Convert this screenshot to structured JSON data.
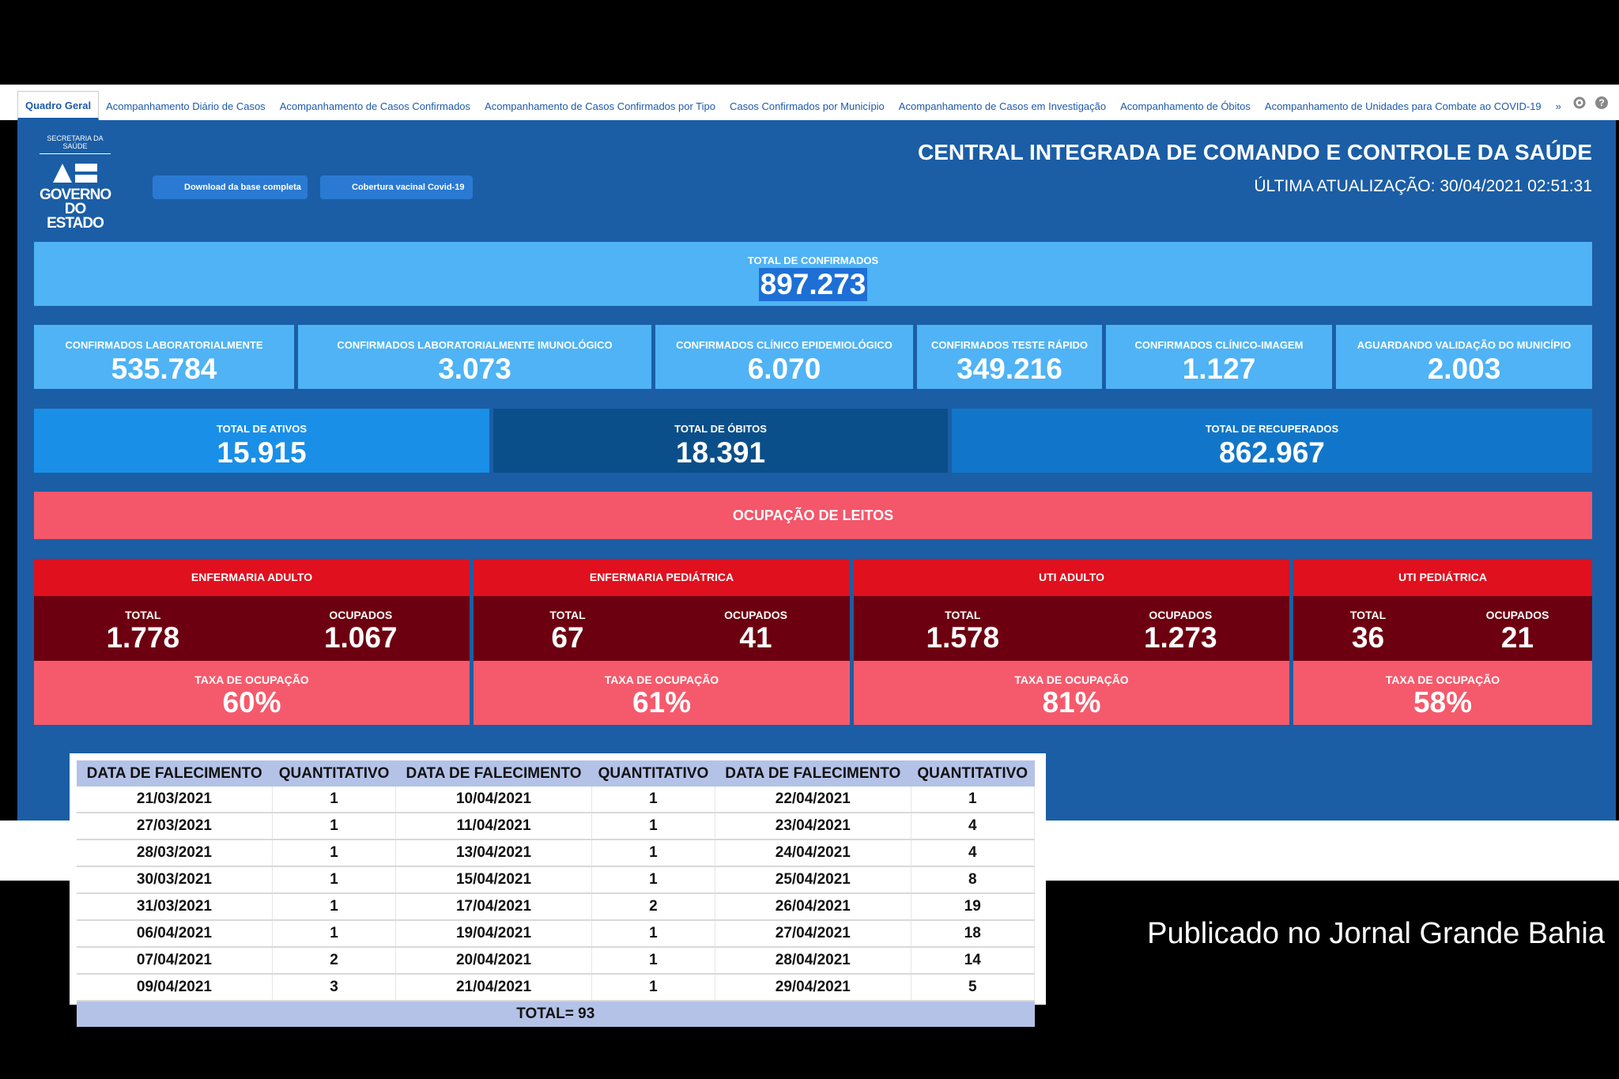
{
  "tabs": [
    "Quadro Geral",
    "Acompanhamento Diário de Casos",
    "Acompanhamento de Casos Confirmados",
    "Acompanhamento de Casos Confirmados por Tipo",
    "Casos Confirmados por Município",
    "Acompanhamento de Casos em Investigação",
    "Acompanhamento de Óbitos",
    "Acompanhamento de Unidades para Combate ao COVID-19",
    "»"
  ],
  "logo": {
    "top": "SECRETARIA DA SAÚDE",
    "main": "GOVERNO DO ESTADO"
  },
  "buttons": [
    "Download da base completa",
    "Cobertura vacinal Covid-19"
  ],
  "header": {
    "title": "CENTRAL INTEGRADA DE COMANDO E CONTROLE DA SAÚDE",
    "updated": "ÚLTIMA ATUALIZAÇÃO: 30/04/2021 02:51:31"
  },
  "total_confirmed": {
    "label": "TOTAL DE CONFIRMADOS",
    "value": "897.273"
  },
  "breakdown": [
    {
      "label": "CONFIRMADOS LABORATORIALMENTE",
      "value": "535.784"
    },
    {
      "label": "CONFIRMADOS LABORATORIALMENTE IMUNOLÓGICO",
      "value": "3.073"
    },
    {
      "label": "CONFIRMADOS CLÍNICO EPIDEMIOLÓGICO",
      "value": "6.070"
    },
    {
      "label": "CONFIRMADOS TESTE RÁPIDO",
      "value": "349.216"
    },
    {
      "label": "CONFIRMADOS CLÍNICO-IMAGEM",
      "value": "1.127"
    },
    {
      "label": "AGUARDANDO VALIDAÇÃO DO MUNICÍPIO",
      "value": "2.003"
    }
  ],
  "totals": [
    {
      "label": "TOTAL DE ATIVOS",
      "value": "15.915"
    },
    {
      "label": "TOTAL DE ÓBITOS",
      "value": "18.391"
    },
    {
      "label": "TOTAL DE RECUPERADOS",
      "value": "862.967"
    }
  ],
  "beds": {
    "title": "OCUPAÇÃO DE LEITOS",
    "groups": [
      {
        "name": "ENFERMARIA ADULTO",
        "total_label": "TOTAL",
        "total": "1.778",
        "occupied_label": "OCUPADOS",
        "occupied": "1.067",
        "rate_label": "TAXA DE OCUPAÇÃO",
        "rate": "60%"
      },
      {
        "name": "ENFERMARIA PEDIÁTRICA",
        "total_label": "TOTAL",
        "total": "67",
        "occupied_label": "OCUPADOS",
        "occupied": "41",
        "rate_label": "TAXA DE OCUPAÇÃO",
        "rate": "61%"
      },
      {
        "name": "UTI ADULTO",
        "total_label": "TOTAL",
        "total": "1.578",
        "occupied_label": "OCUPADOS",
        "occupied": "1.273",
        "rate_label": "TAXA DE OCUPAÇÃO",
        "rate": "81%"
      },
      {
        "name": "UTI PEDIÁTRICA",
        "total_label": "TOTAL",
        "total": "36",
        "occupied_label": "OCUPADOS",
        "occupied": "21",
        "rate_label": "TAXA DE OCUPAÇÃO",
        "rate": "58%"
      }
    ]
  },
  "table": {
    "columns": [
      "DATA DE FALECIMENTO",
      "QUANTITATIVO",
      "DATA DE FALECIMENTO",
      "QUANTITATIVO",
      "DATA DE FALECIMENTO",
      "QUANTITATIVO"
    ],
    "rows": [
      [
        "21/03/2021",
        "1",
        "10/04/2021",
        "1",
        "22/04/2021",
        "1"
      ],
      [
        "27/03/2021",
        "1",
        "11/04/2021",
        "1",
        "23/04/2021",
        "4"
      ],
      [
        "28/03/2021",
        "1",
        "13/04/2021",
        "1",
        "24/04/2021",
        "4"
      ],
      [
        "30/03/2021",
        "1",
        "15/04/2021",
        "1",
        "25/04/2021",
        "8"
      ],
      [
        "31/03/2021",
        "1",
        "17/04/2021",
        "2",
        "26/04/2021",
        "19"
      ],
      [
        "06/04/2021",
        "1",
        "19/04/2021",
        "1",
        "27/04/2021",
        "18"
      ],
      [
        "07/04/2021",
        "2",
        "20/04/2021",
        "1",
        "28/04/2021",
        "14"
      ],
      [
        "09/04/2021",
        "3",
        "21/04/2021",
        "1",
        "29/04/2021",
        "5"
      ]
    ],
    "total": "TOTAL= 93"
  },
  "caption": "Publicado no Jornal Grande Bahia"
}
